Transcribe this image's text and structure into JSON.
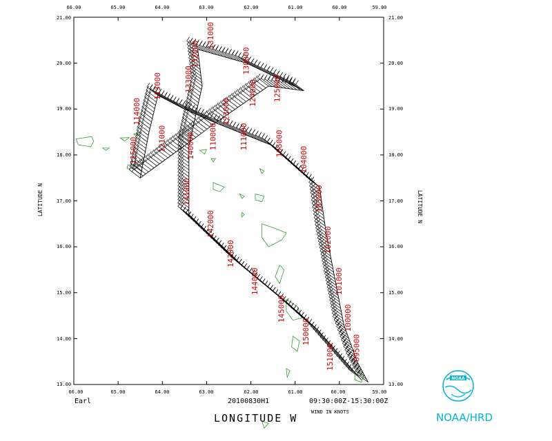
{
  "lon_ticks": [
    "66.00",
    "65.00",
    "64.00",
    "63.00",
    "62.00",
    "61.00",
    "60.00",
    "59.00"
  ],
  "lat_ticks": [
    "13.00",
    "14.00",
    "15.00",
    "16.00",
    "17.00",
    "18.00",
    "19.00",
    "20.00",
    "21.00"
  ],
  "lat_label": "LATITUDE   N",
  "lon_label": "LONGITUDE   W",
  "storm": "Earl",
  "flight": "20100830H1",
  "time_range": "09:30:00Z-15:30:00Z",
  "wind_units": "WIND IN KNOTS",
  "agency": "NOAA/HRD",
  "map_extent": {
    "lon_west": -66.0,
    "lon_east": -59.0,
    "lat_south": 13.0,
    "lat_north": 21.0
  },
  "colors": {
    "track_labels": "#cc0000",
    "land": "#2e9e2e",
    "barbs": "#000000",
    "logo": "#00b4d8"
  },
  "track": [
    [
      -59.35,
      13.05
    ],
    [
      -59.6,
      13.5
    ],
    [
      -59.9,
      14.3
    ],
    [
      -60.1,
      15.3
    ],
    [
      -60.3,
      16.3
    ],
    [
      -60.45,
      17.3
    ],
    [
      -61.5,
      18.2
    ],
    [
      -62.8,
      18.7
    ],
    [
      -63.5,
      18.2
    ],
    [
      -64.5,
      17.5
    ],
    [
      -64.3,
      18.5
    ],
    [
      -64.1,
      19.3
    ],
    [
      -63.5,
      19.0
    ],
    [
      -62.8,
      18.7
    ],
    [
      -61.6,
      19.5
    ],
    [
      -60.8,
      19.4
    ],
    [
      -62.1,
      20.0
    ],
    [
      -63.2,
      20.3
    ],
    [
      -63.1,
      19.5
    ],
    [
      -63.4,
      18.2
    ],
    [
      -63.4,
      16.7
    ],
    [
      -62.2,
      15.6
    ],
    [
      -61.2,
      14.8
    ],
    [
      -60.5,
      14.2
    ],
    [
      -59.5,
      13.1
    ]
  ],
  "track_labels": [
    {
      "text": "114000",
      "lon": -64.52,
      "lat": 18.65
    },
    {
      "text": "113000",
      "lon": -64.05,
      "lat": 19.2
    },
    {
      "text": "115000",
      "lon": -64.6,
      "lat": 17.8
    },
    {
      "text": "121000",
      "lon": -63.95,
      "lat": 18.05
    },
    {
      "text": "133000",
      "lon": -63.35,
      "lat": 19.35
    },
    {
      "text": "132000",
      "lon": -63.2,
      "lat": 19.9
    },
    {
      "text": "131000",
      "lon": -62.85,
      "lat": 20.3
    },
    {
      "text": "130000",
      "lon": -62.05,
      "lat": 19.75
    },
    {
      "text": "125000",
      "lon": -61.35,
      "lat": 19.15
    },
    {
      "text": "124000",
      "lon": -61.9,
      "lat": 19.05
    },
    {
      "text": "123000",
      "lon": -62.5,
      "lat": 18.65
    },
    {
      "text": "110000",
      "lon": -62.8,
      "lat": 18.1
    },
    {
      "text": "111000",
      "lon": -62.1,
      "lat": 18.1
    },
    {
      "text": "105000",
      "lon": -61.3,
      "lat": 17.95
    },
    {
      "text": "104000",
      "lon": -60.75,
      "lat": 17.6
    },
    {
      "text": "103000",
      "lon": -60.4,
      "lat": 16.75
    },
    {
      "text": "102000",
      "lon": -60.2,
      "lat": 15.85
    },
    {
      "text": "101000",
      "lon": -59.95,
      "lat": 14.95
    },
    {
      "text": "100000",
      "lon": -59.75,
      "lat": 14.15
    },
    {
      "text": "095000",
      "lon": -59.55,
      "lat": 13.5
    },
    {
      "text": "142000",
      "lon": -62.85,
      "lat": 16.2
    },
    {
      "text": "143000",
      "lon": -62.4,
      "lat": 15.55
    },
    {
      "text": "144000",
      "lon": -61.85,
      "lat": 14.95
    },
    {
      "text": "145000",
      "lon": -61.25,
      "lat": 14.35
    },
    {
      "text": "150000",
      "lon": -60.7,
      "lat": 13.85
    },
    {
      "text": "151000",
      "lon": -60.15,
      "lat": 13.3
    },
    {
      "text": "141000",
      "lon": -63.4,
      "lat": 16.9
    },
    {
      "text": "140000",
      "lon": -63.3,
      "lat": 17.9
    }
  ]
}
